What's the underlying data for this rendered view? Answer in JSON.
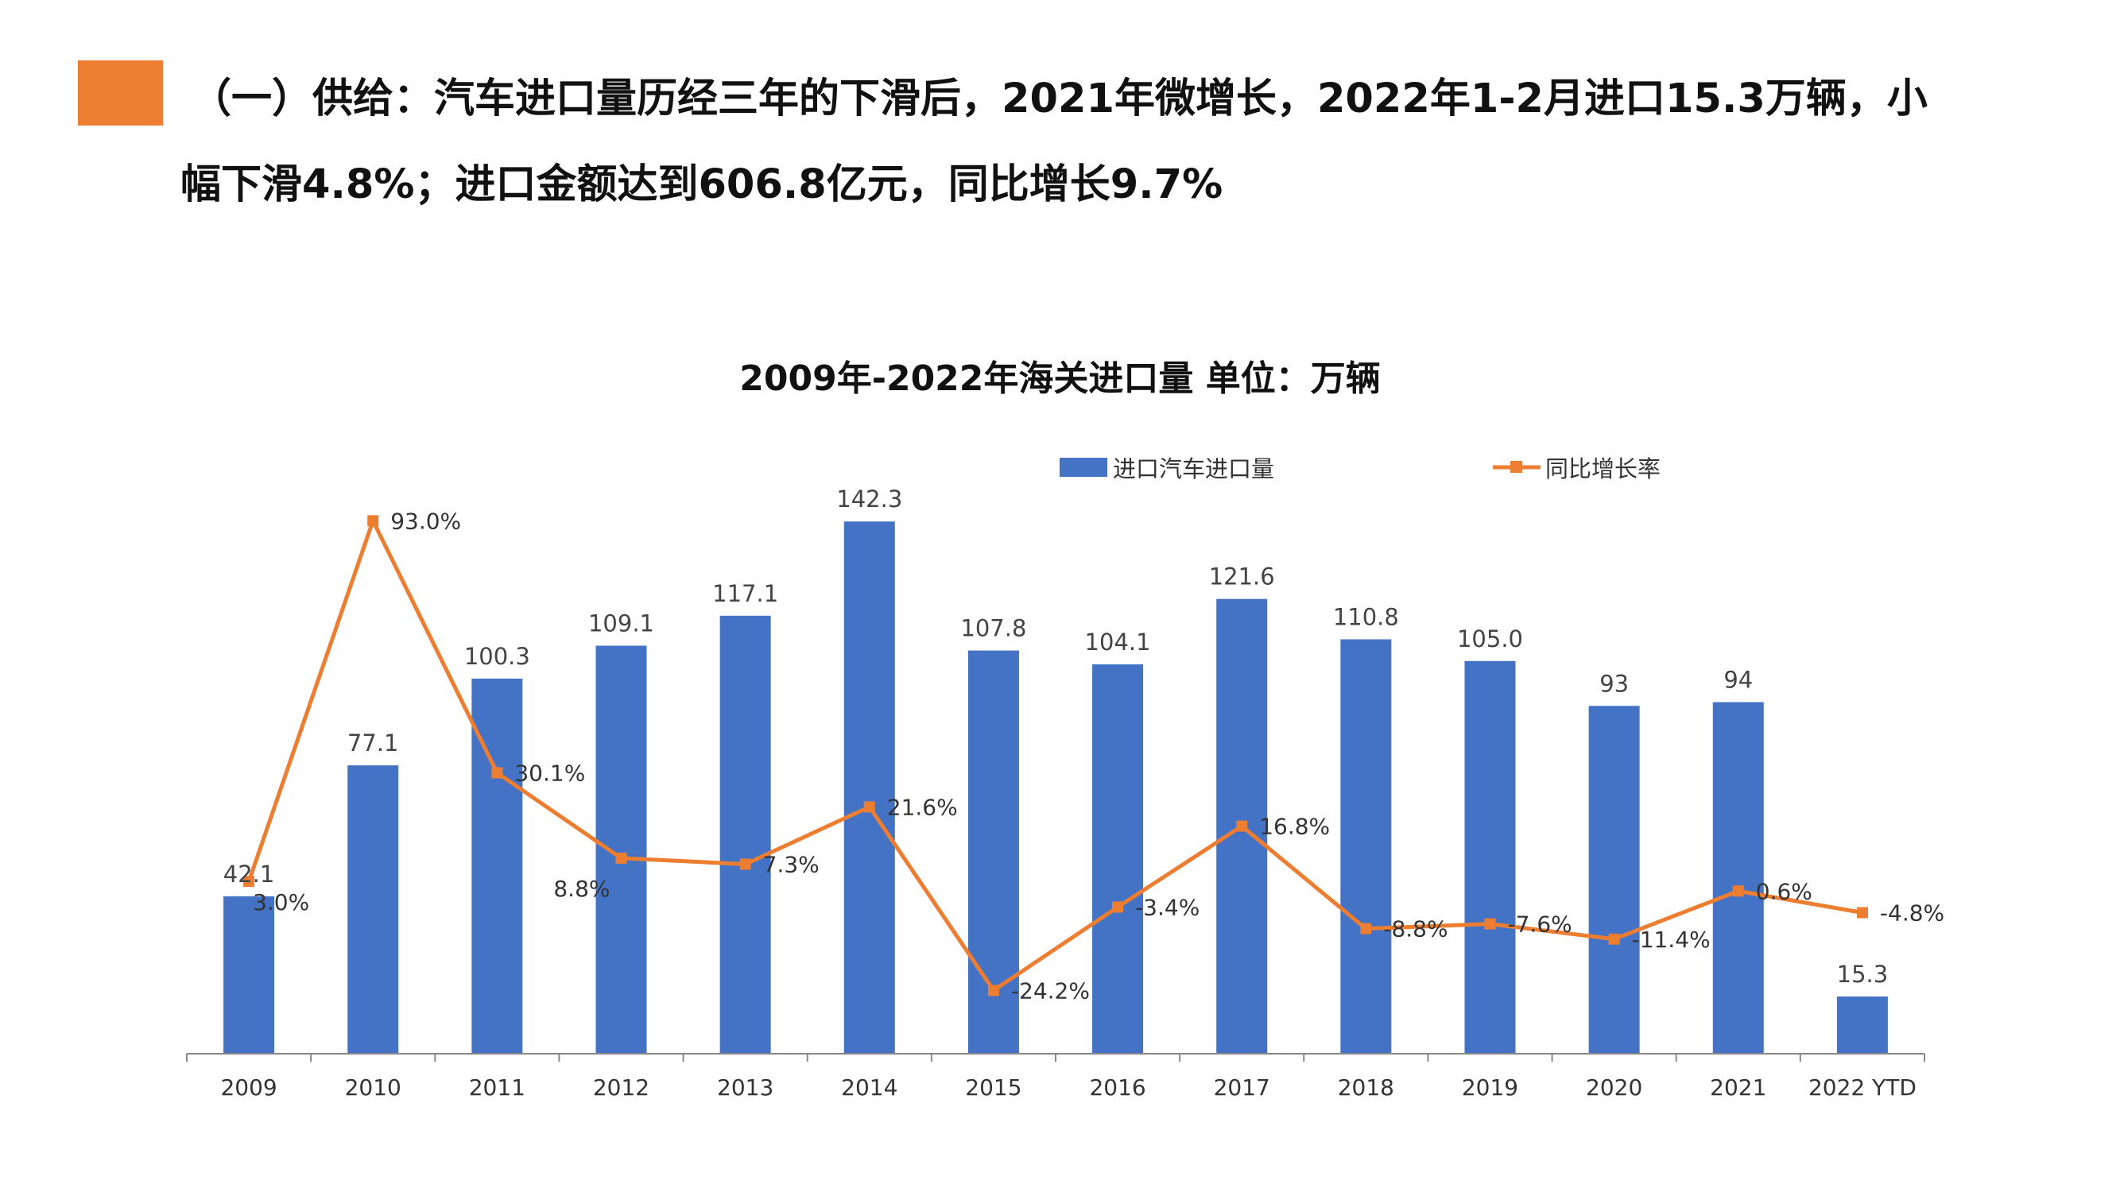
{
  "heading": {
    "line1": "（一）供给：汽车进口量历经三年的下滑后，2021年微增长，2022年1-2月进口15.3万辆，小",
    "line2": "幅下滑4.8%；进口金额达到606.8亿元，同比增长9.7%"
  },
  "colors": {
    "accent": "#ED7D31",
    "bar": "#4472C4",
    "line": "#ED7D31",
    "axis": "#888888"
  },
  "chart_data": {
    "type": "bar",
    "title": "2009年-2022年海关进口量  单位：万辆",
    "categories": [
      "2009",
      "2010",
      "2011",
      "2012",
      "2013",
      "2014",
      "2015",
      "2016",
      "2017",
      "2018",
      "2019",
      "2020",
      "2021",
      "2022 YTD"
    ],
    "series": [
      {
        "name": "进口汽车进口量",
        "type": "bar",
        "axis": "left",
        "values": [
          42.1,
          77.1,
          100.3,
          109.1,
          117.1,
          142.3,
          107.8,
          104.1,
          121.6,
          110.8,
          105.0,
          93,
          94,
          15.3
        ],
        "labels": [
          "42.1",
          "77.1",
          "100.3",
          "109.1",
          "117.1",
          "142.3",
          "107.8",
          "104.1",
          "121.6",
          "110.8",
          "105.0",
          "93",
          "94",
          "15.3"
        ]
      },
      {
        "name": "同比增长率",
        "type": "line",
        "axis": "right",
        "marker": "square",
        "values": [
          3.0,
          93.0,
          30.1,
          8.8,
          7.3,
          21.6,
          -24.2,
          -3.4,
          16.8,
          -8.8,
          -7.6,
          -11.4,
          0.6,
          -4.8
        ],
        "labels": [
          "3.0%",
          "93.0%",
          "30.1%",
          "8.8%",
          "7.3%",
          "21.6%",
          "-24.2%",
          "-3.4%",
          "16.8%",
          "-8.8%",
          "-7.6%",
          "-11.4%",
          "0.6%",
          "-4.8%"
        ]
      }
    ],
    "ylim": [
      0,
      150
    ],
    "y2lim": [
      -40,
      100
    ],
    "legend": "top",
    "grid": false,
    "xlabel": "",
    "ylabel": ""
  }
}
